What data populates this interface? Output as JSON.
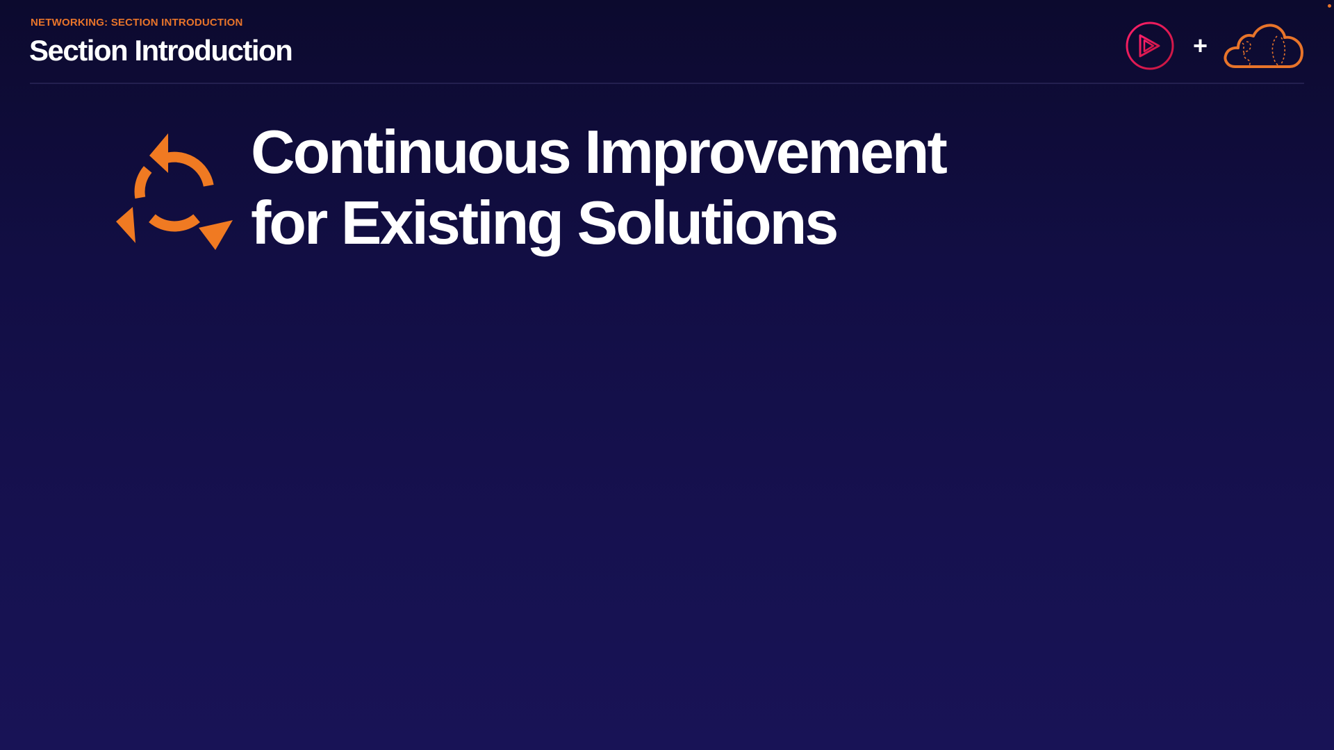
{
  "header": {
    "eyebrow": "NETWORKING: SECTION INTRODUCTION",
    "title": "Section Introduction"
  },
  "hero": {
    "title_line_1": "Continuous Improvement",
    "title_line_2": "for Existing Solutions",
    "icon": "cycle-arrows-icon"
  },
  "logos": {
    "left": "play-logo-icon",
    "separator": "+",
    "right": "cloud-logo-icon"
  },
  "colors": {
    "accent": "#e8742a",
    "background_top": "#0c0a2e",
    "background_bottom": "#181356",
    "play_logo": "#e0245e"
  }
}
